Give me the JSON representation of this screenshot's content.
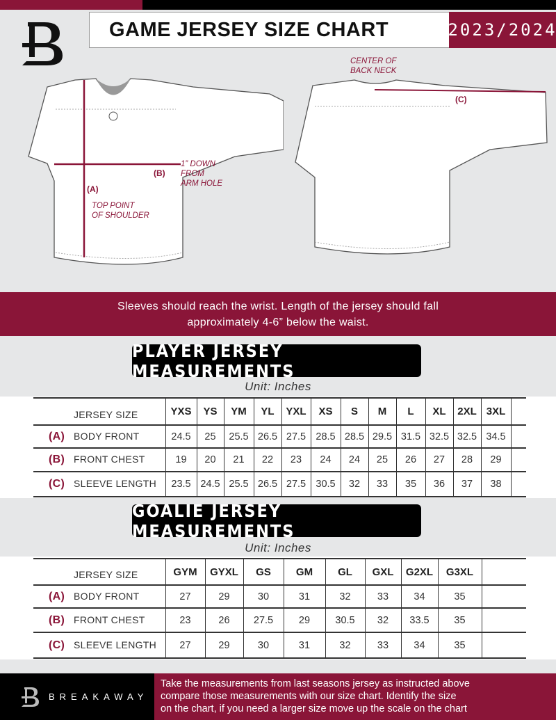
{
  "header": {
    "title": "GAME JERSEY SIZE CHART",
    "season": "2023/2024"
  },
  "diagram": {
    "front": {
      "label_a": "(A)",
      "note_a": [
        "TOP POINT",
        "OF SHOULDER"
      ],
      "label_b": "(B)",
      "note_b": [
        "1” DOWN",
        "FROM",
        "ARM HOLE"
      ]
    },
    "back": {
      "note_c": [
        "CENTER OF",
        "BACK NECK"
      ],
      "label_c": "(C)"
    }
  },
  "instructions": [
    "Sleeves should reach the wrist. Length of the jersey should fall",
    "approximately 4-6” below the waist."
  ],
  "player": {
    "title": "PLAYER JERSEY MEASUREMENTS",
    "unit": "Unit: Inches",
    "size_header": "JERSEY SIZE",
    "sizes": [
      "YXS",
      "YS",
      "YM",
      "YL",
      "YXL",
      "XS",
      "S",
      "M",
      "L",
      "XL",
      "2XL",
      "3XL"
    ],
    "rows": [
      {
        "key": "(A)",
        "label": "BODY FRONT",
        "values": [
          "24.5",
          "25",
          "25.5",
          "26.5",
          "27.5",
          "28.5",
          "28.5",
          "29.5",
          "31.5",
          "32.5",
          "32.5",
          "34.5"
        ]
      },
      {
        "key": "(B)",
        "label": "FRONT CHEST",
        "values": [
          "19",
          "20",
          "21",
          "22",
          "23",
          "24",
          "24",
          "25",
          "26",
          "27",
          "28",
          "29"
        ]
      },
      {
        "key": "(C)",
        "label": "SLEEVE LENGTH",
        "values": [
          "23.5",
          "24.5",
          "25.5",
          "26.5",
          "27.5",
          "30.5",
          "32",
          "33",
          "35",
          "36",
          "37",
          "38"
        ]
      }
    ]
  },
  "goalie": {
    "title": "GOALIE JERSEY MEASUREMENTS",
    "unit": "Unit: Inches",
    "size_header": "JERSEY SIZE",
    "sizes": [
      "GYM",
      "GYXL",
      "GS",
      "GM",
      "GL",
      "GXL",
      "G2XL",
      "G3XL"
    ],
    "rows": [
      {
        "key": "(A)",
        "label": "BODY FRONT",
        "values": [
          "27",
          "29",
          "30",
          "31",
          "32",
          "33",
          "34",
          "35"
        ]
      },
      {
        "key": "(B)",
        "label": "FRONT CHEST",
        "values": [
          "23",
          "26",
          "27.5",
          "29",
          "30.5",
          "32",
          "33.5",
          "35"
        ]
      },
      {
        "key": "(C)",
        "label": "SLEEVE LENGTH",
        "values": [
          "27",
          "29",
          "30",
          "31",
          "32",
          "33",
          "34",
          "35"
        ]
      }
    ]
  },
  "footer": {
    "brand": "BREAKAWAY",
    "text": [
      "Take the measurements from last seasons jersey as instructed above",
      "compare those measurements  with our size chart. Identify the size",
      "on the chart, if you need a larger size move up the scale on the chart"
    ]
  },
  "colors": {
    "accent": "#8a1538",
    "dark": "#000000",
    "background": "#e6e7e8"
  }
}
